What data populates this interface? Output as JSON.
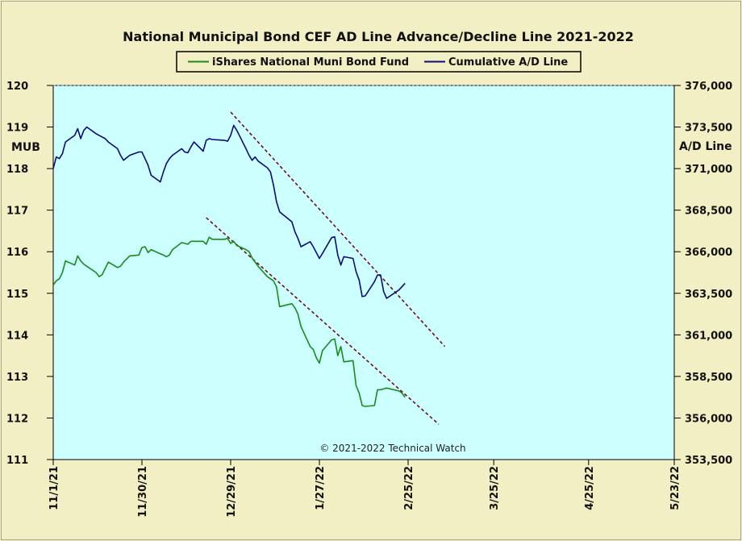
{
  "chart_data": {
    "type": "line",
    "title": "National Municipal Bond CEF AD Line Advance/Decline Line 2021-2022",
    "left_axis_label": "MUB",
    "right_axis_label": "A/D Line",
    "left_ylim": [
      111,
      120
    ],
    "right_ylim": [
      353500,
      376000
    ],
    "left_ticks": [
      "111",
      "112",
      "113",
      "114",
      "115",
      "116",
      "117",
      "118",
      "119",
      "120"
    ],
    "right_ticks": [
      "353,500",
      "356,000",
      "358,500",
      "361,000",
      "363,500",
      "366,000",
      "368,500",
      "371,000",
      "373,500",
      "376,000"
    ],
    "x_ticks": [
      "11/1/21",
      "11/30/21",
      "12/29/21",
      "1/27/22",
      "2/25/22",
      "3/25/22",
      "4/25/22",
      "5/23/22"
    ],
    "x_tick_dates": [
      "2021-11-01",
      "2021-11-30",
      "2021-12-29",
      "2022-01-27",
      "2022-02-25",
      "2022-03-25",
      "2022-04-25",
      "2022-05-23"
    ],
    "watermark": "© 2021-2022  Technical Watch",
    "legend_position": "top-center",
    "colors": {
      "mub": "#1a8a1a",
      "ad": "#0a0a7a",
      "trend": "#7a0a1a",
      "plot_bg": "#ccffff",
      "page_bg": "#f3efc4"
    },
    "series": [
      {
        "name": "iShares National Muni Bond Fund",
        "axis": "left",
        "points": [
          [
            "2021-11-01",
            115.2
          ],
          [
            "2021-11-02",
            115.3
          ],
          [
            "2021-11-03",
            115.35
          ],
          [
            "2021-11-04",
            115.5
          ],
          [
            "2021-11-05",
            115.78
          ],
          [
            "2021-11-08",
            115.68
          ],
          [
            "2021-11-09",
            115.9
          ],
          [
            "2021-11-10",
            115.78
          ],
          [
            "2021-11-11",
            115.7
          ],
          [
            "2021-11-12",
            115.65
          ],
          [
            "2021-11-15",
            115.5
          ],
          [
            "2021-11-16",
            115.4
          ],
          [
            "2021-11-17",
            115.45
          ],
          [
            "2021-11-18",
            115.6
          ],
          [
            "2021-11-19",
            115.75
          ],
          [
            "2021-11-22",
            115.62
          ],
          [
            "2021-11-23",
            115.65
          ],
          [
            "2021-11-24",
            115.75
          ],
          [
            "2021-11-26",
            115.9
          ],
          [
            "2021-11-29",
            115.92
          ],
          [
            "2021-11-30",
            116.1
          ],
          [
            "2021-12-01",
            116.12
          ],
          [
            "2021-12-02",
            115.98
          ],
          [
            "2021-12-03",
            116.05
          ],
          [
            "2021-12-06",
            115.95
          ],
          [
            "2021-12-07",
            115.92
          ],
          [
            "2021-12-08",
            115.88
          ],
          [
            "2021-12-09",
            115.92
          ],
          [
            "2021-12-10",
            116.05
          ],
          [
            "2021-12-13",
            116.22
          ],
          [
            "2021-12-14",
            116.2
          ],
          [
            "2021-12-15",
            116.18
          ],
          [
            "2021-12-16",
            116.25
          ],
          [
            "2021-12-17",
            116.25
          ],
          [
            "2021-12-20",
            116.25
          ],
          [
            "2021-12-21",
            116.18
          ],
          [
            "2021-12-22",
            116.35
          ],
          [
            "2021-12-23",
            116.3
          ],
          [
            "2021-12-27",
            116.3
          ],
          [
            "2021-12-28",
            116.32
          ],
          [
            "2021-12-29",
            116.2
          ],
          [
            "2021-12-30",
            116.25
          ],
          [
            "2021-12-31",
            116.15
          ],
          [
            "2022-01-03",
            116.05
          ],
          [
            "2022-01-04",
            116.0
          ],
          [
            "2022-01-05",
            115.85
          ],
          [
            "2022-01-06",
            115.75
          ],
          [
            "2022-01-07",
            115.65
          ],
          [
            "2022-01-10",
            115.4
          ],
          [
            "2022-01-11",
            115.35
          ],
          [
            "2022-01-12",
            115.3
          ],
          [
            "2022-01-13",
            115.15
          ],
          [
            "2022-01-14",
            114.68
          ],
          [
            "2022-01-18",
            114.75
          ],
          [
            "2022-01-19",
            114.65
          ],
          [
            "2022-01-20",
            114.5
          ],
          [
            "2022-01-21",
            114.2
          ],
          [
            "2022-01-24",
            113.72
          ],
          [
            "2022-01-25",
            113.65
          ],
          [
            "2022-01-26",
            113.45
          ],
          [
            "2022-01-27",
            113.32
          ],
          [
            "2022-01-28",
            113.62
          ],
          [
            "2022-01-31",
            113.88
          ],
          [
            "2022-02-01",
            113.9
          ],
          [
            "2022-02-02",
            113.5
          ],
          [
            "2022-02-03",
            113.72
          ],
          [
            "2022-02-04",
            113.35
          ],
          [
            "2022-02-07",
            113.38
          ],
          [
            "2022-02-08",
            112.78
          ],
          [
            "2022-02-09",
            112.6
          ],
          [
            "2022-02-10",
            112.3
          ],
          [
            "2022-02-11",
            112.28
          ],
          [
            "2022-02-14",
            112.3
          ],
          [
            "2022-02-15",
            112.68
          ],
          [
            "2022-02-16",
            112.68
          ],
          [
            "2022-02-17",
            112.7
          ],
          [
            "2022-02-18",
            112.72
          ],
          [
            "2022-02-22",
            112.65
          ],
          [
            "2022-02-23",
            112.6
          ],
          [
            "2022-02-24",
            112.5
          ]
        ]
      },
      {
        "name": "Cumulative A/D Line",
        "axis": "right",
        "points": [
          [
            "2021-11-01",
            371000
          ],
          [
            "2021-11-02",
            371700
          ],
          [
            "2021-11-03",
            371600
          ],
          [
            "2021-11-04",
            371900
          ],
          [
            "2021-11-05",
            372600
          ],
          [
            "2021-11-08",
            373000
          ],
          [
            "2021-11-09",
            373400
          ],
          [
            "2021-11-10",
            372800
          ],
          [
            "2021-11-11",
            373300
          ],
          [
            "2021-11-12",
            373500
          ],
          [
            "2021-11-15",
            373100
          ],
          [
            "2021-11-16",
            373000
          ],
          [
            "2021-11-17",
            372900
          ],
          [
            "2021-11-18",
            372800
          ],
          [
            "2021-11-19",
            372600
          ],
          [
            "2021-11-22",
            372200
          ],
          [
            "2021-11-23",
            371800
          ],
          [
            "2021-11-24",
            371500
          ],
          [
            "2021-11-26",
            371800
          ],
          [
            "2021-11-29",
            372000
          ],
          [
            "2021-11-30",
            372000
          ],
          [
            "2021-12-01",
            371600
          ],
          [
            "2021-12-02",
            371200
          ],
          [
            "2021-12-03",
            370600
          ],
          [
            "2021-12-06",
            370200
          ],
          [
            "2021-12-07",
            370800
          ],
          [
            "2021-12-08",
            371300
          ],
          [
            "2021-12-09",
            371600
          ],
          [
            "2021-12-10",
            371800
          ],
          [
            "2021-12-13",
            372200
          ],
          [
            "2021-12-14",
            372000
          ],
          [
            "2021-12-15",
            371950
          ],
          [
            "2021-12-16",
            372300
          ],
          [
            "2021-12-17",
            372600
          ],
          [
            "2021-12-20",
            372050
          ],
          [
            "2021-12-21",
            372700
          ],
          [
            "2021-12-22",
            372800
          ],
          [
            "2021-12-23",
            372750
          ],
          [
            "2021-12-27",
            372700
          ],
          [
            "2021-12-28",
            372650
          ],
          [
            "2021-12-29",
            373000
          ],
          [
            "2021-12-30",
            373600
          ],
          [
            "2021-12-31",
            373300
          ],
          [
            "2022-01-03",
            372200
          ],
          [
            "2022-01-04",
            371800
          ],
          [
            "2022-01-05",
            371500
          ],
          [
            "2022-01-06",
            371700
          ],
          [
            "2022-01-07",
            371450
          ],
          [
            "2022-01-10",
            371050
          ],
          [
            "2022-01-11",
            370800
          ],
          [
            "2022-01-12",
            370000
          ],
          [
            "2022-01-13",
            369000
          ],
          [
            "2022-01-14",
            368400
          ],
          [
            "2022-01-18",
            367800
          ],
          [
            "2022-01-19",
            367200
          ],
          [
            "2022-01-20",
            366800
          ],
          [
            "2022-01-21",
            366300
          ],
          [
            "2022-01-24",
            366600
          ],
          [
            "2022-01-25",
            366300
          ],
          [
            "2022-01-26",
            365950
          ],
          [
            "2022-01-27",
            365600
          ],
          [
            "2022-01-28",
            365900
          ],
          [
            "2022-01-31",
            366850
          ],
          [
            "2022-02-01",
            366900
          ],
          [
            "2022-02-02",
            365800
          ],
          [
            "2022-02-03",
            365200
          ],
          [
            "2022-02-04",
            365700
          ],
          [
            "2022-02-07",
            365600
          ],
          [
            "2022-02-08",
            364800
          ],
          [
            "2022-02-09",
            364300
          ],
          [
            "2022-02-10",
            363300
          ],
          [
            "2022-02-11",
            363350
          ],
          [
            "2022-02-14",
            364200
          ],
          [
            "2022-02-15",
            364600
          ],
          [
            "2022-02-16",
            364600
          ],
          [
            "2022-02-17",
            363600
          ],
          [
            "2022-02-18",
            363200
          ],
          [
            "2022-02-22",
            363700
          ],
          [
            "2022-02-24",
            364100
          ]
        ]
      }
    ],
    "trend_lines": [
      {
        "axis": "right",
        "from": [
          "2021-12-29",
          374400
        ],
        "to": [
          "2022-03-09",
          360300
        ]
      },
      {
        "axis": "left",
        "from": [
          "2021-12-21",
          116.82
        ],
        "to": [
          "2022-03-07",
          111.85
        ]
      }
    ]
  }
}
